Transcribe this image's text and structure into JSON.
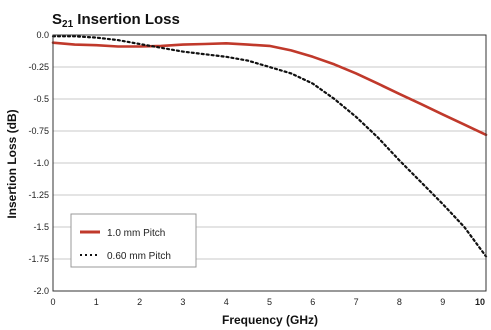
{
  "chart_data": {
    "type": "line",
    "title": {
      "main": "S",
      "subscript": "21",
      "rest": " Insertion Loss"
    },
    "xlabel": "Frequency (GHz)",
    "ylabel": "Insertion Loss (dB)",
    "xlim": [
      0,
      10
    ],
    "ylim": [
      -2.0,
      0.0
    ],
    "x_ticks": [
      0,
      1,
      2,
      3,
      4,
      5,
      6,
      7,
      8,
      9,
      10
    ],
    "x_tick_labels": [
      "0",
      "1",
      "2",
      "3",
      "4",
      "5",
      "6",
      "7",
      "8",
      "9",
      "10"
    ],
    "y_ticks": [
      0.0,
      -0.25,
      -0.5,
      -0.75,
      -1.0,
      -1.25,
      -1.5,
      -1.75,
      -2.0
    ],
    "y_tick_labels": [
      "0.0",
      "-0.25",
      "-0.5",
      "-0.75",
      "-1.0",
      "-1.25",
      "-1.5",
      "-1.75",
      "-2.0"
    ],
    "grid": "horizontal",
    "legend_position": "bottom-left",
    "series": [
      {
        "name": "1.0 mm Pitch",
        "color": "#c0392b",
        "style": "solid",
        "x": [
          0,
          0.5,
          1,
          1.5,
          2,
          2.5,
          3,
          3.5,
          4,
          4.5,
          5,
          5.5,
          6,
          6.5,
          7,
          7.5,
          8,
          8.5,
          9,
          9.5,
          10
        ],
        "y": [
          -0.06,
          -0.075,
          -0.08,
          -0.09,
          -0.09,
          -0.085,
          -0.075,
          -0.07,
          -0.065,
          -0.075,
          -0.085,
          -0.12,
          -0.17,
          -0.23,
          -0.3,
          -0.38,
          -0.46,
          -0.54,
          -0.62,
          -0.7,
          -0.78
        ]
      },
      {
        "name": "0.60 mm Pitch",
        "color": "#111111",
        "style": "dotted",
        "x": [
          0,
          0.5,
          1,
          1.5,
          2,
          2.5,
          3,
          3.5,
          4,
          4.5,
          5,
          5.5,
          6,
          6.5,
          7,
          7.5,
          8,
          8.5,
          9,
          9.5,
          10
        ],
        "y": [
          -0.01,
          -0.01,
          -0.02,
          -0.04,
          -0.07,
          -0.1,
          -0.13,
          -0.15,
          -0.17,
          -0.2,
          -0.25,
          -0.3,
          -0.38,
          -0.5,
          -0.64,
          -0.8,
          -0.98,
          -1.15,
          -1.32,
          -1.5,
          -1.73
        ]
      }
    ]
  }
}
